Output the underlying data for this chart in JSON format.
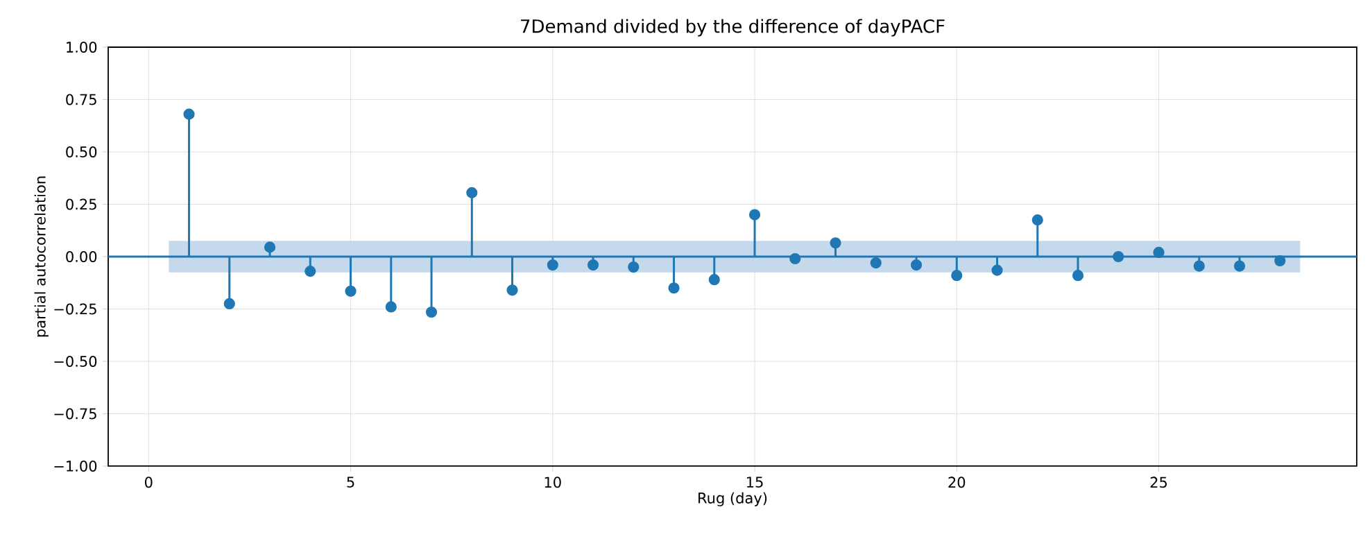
{
  "chart_data": {
    "type": "lollipop",
    "title": "7Demand divided by the difference of dayPACF",
    "xlabel": "Rug (day)",
    "ylabel": "partial autocorrelation",
    "x": [
      1,
      2,
      3,
      4,
      5,
      6,
      7,
      8,
      9,
      10,
      11,
      12,
      13,
      14,
      15,
      16,
      17,
      18,
      19,
      20,
      21,
      22,
      23,
      24,
      25,
      26,
      27,
      28
    ],
    "values": [
      0.68,
      -0.225,
      0.045,
      -0.07,
      -0.165,
      -0.24,
      -0.265,
      0.305,
      -0.16,
      -0.04,
      -0.04,
      -0.05,
      -0.15,
      -0.11,
      0.2,
      -0.01,
      0.065,
      -0.03,
      -0.04,
      -0.09,
      -0.065,
      0.175,
      -0.09,
      0.0,
      0.02,
      -0.045,
      -0.045,
      -0.02
    ],
    "color": "#1f77b4",
    "marker": "circle",
    "grid": true,
    "xlim": [
      -1,
      29.9
    ],
    "ylim": [
      -1,
      1
    ],
    "xticks": [
      0,
      5,
      10,
      15,
      20,
      25
    ],
    "yticks": [
      {
        "value": 1,
        "label": "1.00"
      },
      {
        "value": 0.75,
        "label": "0.75"
      },
      {
        "value": 0.5,
        "label": "0.50"
      },
      {
        "value": 0.25,
        "label": "0.25"
      },
      {
        "value": 0,
        "label": "0.00"
      },
      {
        "value": -0.25,
        "label": "−0.25"
      },
      {
        "value": -0.5,
        "label": "−0.50"
      },
      {
        "value": -0.75,
        "label": "−0.75"
      },
      {
        "value": -1,
        "label": "−1.00"
      }
    ],
    "ref_lines": [
      {
        "axis": "y",
        "value": 0,
        "color": "#1f77b4"
      }
    ],
    "bands": [
      {
        "axis": "y",
        "from": -0.075,
        "to": 0.075,
        "color": "#c5d9ec"
      }
    ]
  }
}
